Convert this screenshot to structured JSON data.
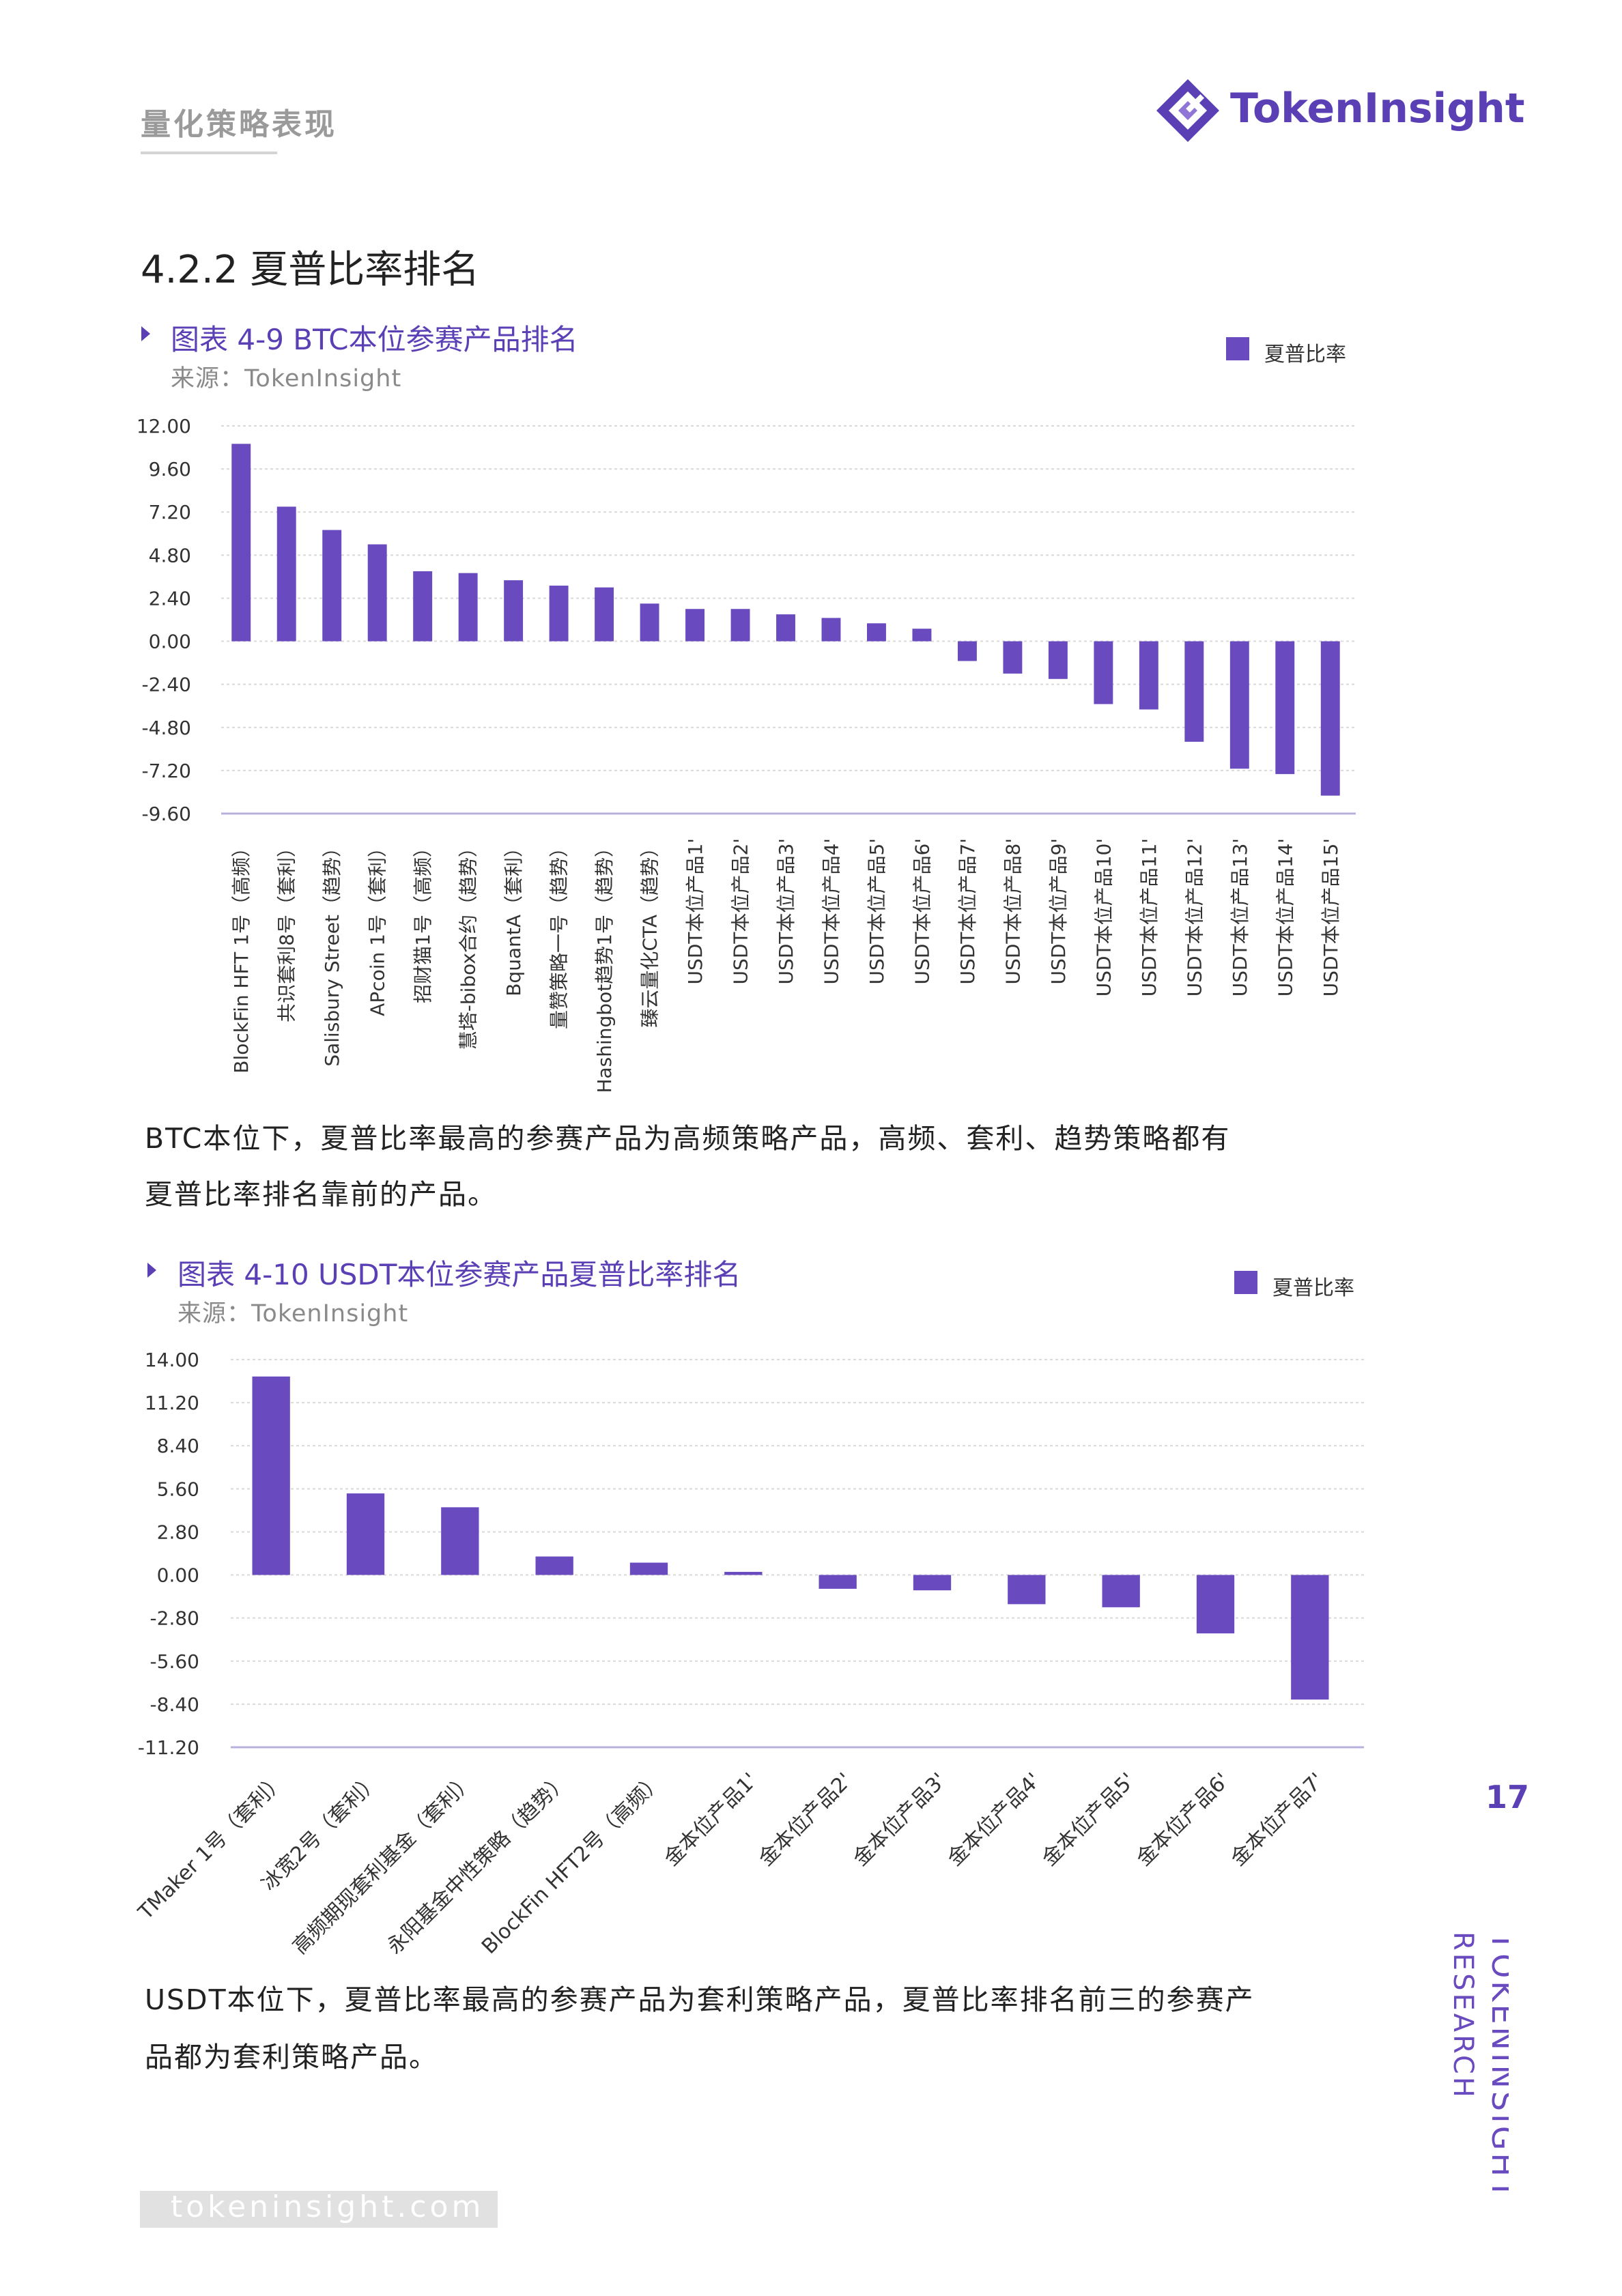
{
  "header": {
    "section_title": "量化策略表现",
    "brand_name": "TokenInsight"
  },
  "heading": "4.2.2 夏普比率排名",
  "figures": [
    {
      "title": "图表 4-9 BTC本位参赛产品排名",
      "source": "来源：TokenInsight",
      "legend": "夏普比率"
    },
    {
      "title": "图表 4-10 USDT本位参赛产品夏普比率排名",
      "source": "来源：TokenInsight",
      "legend": "夏普比率"
    }
  ],
  "paragraphs": {
    "p1_line1": "BTC本位下，夏普比率最高的参赛产品为高频策略产品，高频、套利、趋势策略都有",
    "p1_line2": "夏普比率排名靠前的产品。",
    "p2_line1": "USDT本位下，夏普比率最高的参赛产品为套利策略产品，夏普比率排名前三的参赛产",
    "p2_line2": "品都为套利策略产品。"
  },
  "page_number": "17",
  "side_brand": {
    "line1": "TOKENINSIGHT",
    "line2": "RESEARCH"
  },
  "footer_url": "tokeninsight.com",
  "colors": {
    "bar": "#6a4bbf",
    "accent": "#5b3fb5"
  },
  "chart_data": [
    {
      "type": "bar",
      "title": "图表 4-9 BTC本位参赛产品排名",
      "xlabel": "",
      "ylabel": "",
      "ylim": [
        -9.6,
        12.0
      ],
      "yticks": [
        "12.00",
        "9.60",
        "7.20",
        "4.80",
        "2.40",
        "0.00",
        "-2.40",
        "-4.80",
        "-7.20",
        "-9.60"
      ],
      "ytick_values": [
        12.0,
        9.6,
        7.2,
        4.8,
        2.4,
        0.0,
        -2.4,
        -4.8,
        -7.2,
        -9.6
      ],
      "legend": "top-right",
      "categories": [
        "BlockFin HFT 1号（高频）",
        "共识套利8号（套利）",
        "Salisbury Street（趋势）",
        "APcoin 1号（套利）",
        "招财猫1号（高频）",
        "慧塔-bibox合约（趋势）",
        "BquantA（套利）",
        "量赞策略一号（趋势）",
        "Hashingbot趋势1号（趋势）",
        "臻云量化CTA（趋势）",
        "USDT本位产品1'",
        "USDT本位产品2'",
        "USDT本位产品3'",
        "USDT本位产品4'",
        "USDT本位产品5'",
        "USDT本位产品6'",
        "USDT本位产品7'",
        "USDT本位产品8'",
        "USDT本位产品9'",
        "USDT本位产品10'",
        "USDT本位产品11'",
        "USDT本位产品12'",
        "USDT本位产品13'",
        "USDT本位产品14'",
        "USDT本位产品15'"
      ],
      "series": [
        {
          "name": "夏普比率",
          "values": [
            11.0,
            7.5,
            6.2,
            5.4,
            3.9,
            3.8,
            3.4,
            3.1,
            3.0,
            2.1,
            1.8,
            1.8,
            1.5,
            1.3,
            1.0,
            0.7,
            -1.1,
            -1.8,
            -2.1,
            -3.5,
            -3.8,
            -5.6,
            -7.1,
            -7.4,
            -8.6
          ]
        }
      ]
    },
    {
      "type": "bar",
      "title": "图表 4-10 USDT本位参赛产品夏普比率排名",
      "xlabel": "",
      "ylabel": "",
      "ylim": [
        -11.2,
        14.0
      ],
      "yticks": [
        "14.00",
        "11.20",
        "8.40",
        "5.60",
        "2.80",
        "0.00",
        "-2.80",
        "-5.60",
        "-8.40",
        "-11.20"
      ],
      "ytick_values": [
        14.0,
        11.2,
        8.4,
        5.6,
        2.8,
        0.0,
        -2.8,
        -5.6,
        -8.4,
        -11.2
      ],
      "legend": "top-right",
      "categories": [
        "TMaker 1号（套利）",
        "冰宽2号（套利）",
        "高频期现套利基金（套利）",
        "永阳基金中性策略（趋势）",
        "BlockFin HFT2号（高频）",
        "金本位产品1'",
        "金本位产品2'",
        "金本位产品3'",
        "金本位产品4'",
        "金本位产品5'",
        "金本位产品6'",
        "金本位产品7'"
      ],
      "series": [
        {
          "name": "夏普比率",
          "values": [
            12.9,
            5.3,
            4.4,
            1.2,
            0.8,
            0.2,
            -0.9,
            -1.0,
            -1.9,
            -2.1,
            -3.8,
            -8.1
          ]
        }
      ]
    }
  ]
}
